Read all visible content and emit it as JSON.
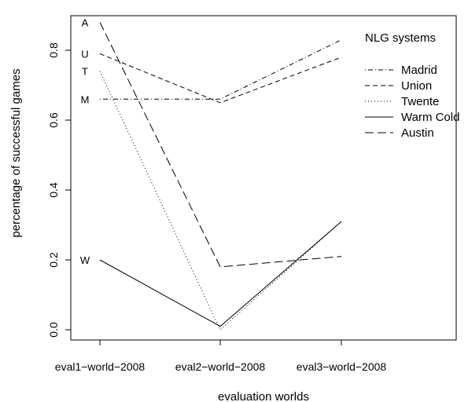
{
  "chart_data": {
    "type": "line",
    "xlabel": "evaluation worlds",
    "ylabel": "percentage of successful games",
    "categories": [
      "eval1−world−2008",
      "eval2−world−2008",
      "eval3−world−2008"
    ],
    "ylim": [
      0,
      0.9
    ],
    "yticks": [
      "0.0",
      "0.2",
      "0.4",
      "0.6",
      "0.8"
    ],
    "ytick_values": [
      0,
      0.2,
      0.4,
      0.6,
      0.8
    ],
    "grid": false,
    "legend": {
      "title": "NLG systems",
      "position": "top-right"
    },
    "series": [
      {
        "name": "Madrid",
        "marker": "M",
        "dash": "dotdash",
        "values": [
          0.66,
          0.66,
          0.83
        ]
      },
      {
        "name": "Union",
        "marker": "U",
        "dash": "dashed",
        "values": [
          0.79,
          0.65,
          0.78
        ]
      },
      {
        "name": "Twente",
        "marker": "T",
        "dash": "dotted",
        "values": [
          0.74,
          0.0,
          0.31
        ]
      },
      {
        "name": "Warm Cold",
        "marker": "W",
        "dash": "solid",
        "values": [
          0.2,
          0.01,
          0.31
        ]
      },
      {
        "name": "Austin",
        "marker": "A",
        "dash": "longdash",
        "values": [
          0.88,
          0.18,
          0.21
        ]
      }
    ]
  }
}
